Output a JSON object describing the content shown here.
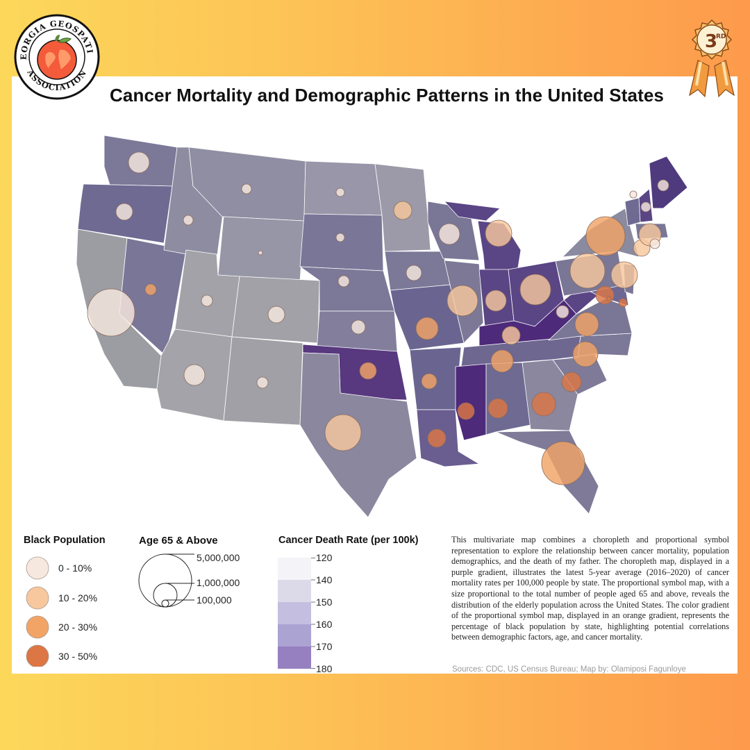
{
  "header": {
    "title": "Cancer Mortality and Demographic Patterns in the United States"
  },
  "logo": {
    "text": "GEORGIA GEOSPATIAL ASSOCIATION",
    "icon": "peach-globe-icon"
  },
  "award": {
    "text": "3RD",
    "icon": "ribbon-medal-icon"
  },
  "colors": {
    "background_left": "#fcd85a",
    "background_right": "#fd9a4c",
    "choropleth_120": "#f4f3f7",
    "choropleth_140": "#dcd9e9",
    "choropleth_150": "#c4bfe0",
    "choropleth_160": "#aba3d2",
    "choropleth_170": "#9680c0",
    "choropleth_180": "#6a3d9a",
    "symbol_0_10": "#f6e8df",
    "symbol_10_20": "#f7c79e",
    "symbol_20_30": "#f2a466",
    "symbol_30_50": "#dc7645"
  },
  "legend": {
    "black_population": {
      "title": "Black Population",
      "classes": [
        "0 - 10%",
        "10 - 20%",
        "20 - 30%",
        "30 - 50%"
      ]
    },
    "age65": {
      "title": "Age 65 & Above",
      "values": [
        "5,000,000",
        "1,000,000",
        "100,000"
      ]
    },
    "death_rate": {
      "title": "Cancer Death Rate (per 100k)",
      "breaks": [
        "120",
        "140",
        "150",
        "160",
        "170",
        "180"
      ]
    }
  },
  "description": "This multivariate map combines a choropleth and proportional symbol representation to explore the relationship between cancer mortality, population demographics, and the death of my father. The choropleth map, displayed in a purple gradient, illustrates the latest 5-year average (2016–2020) of cancer mortality rates per 100,000 people by state. The proportional symbol map, with a size proportional to the total number of people aged 65 and above, reveals the distribution of the elderly population across the United States. The color gradient of the proportional symbol map, displayed in an orange gradient, represents the percentage of black population by state, highlighting potential correlations between demographic factors, age, and cancer mortality.",
  "sources": "Sources: CDC, US Census Bureau; Map by: Olamiposi Fagunloye"
}
